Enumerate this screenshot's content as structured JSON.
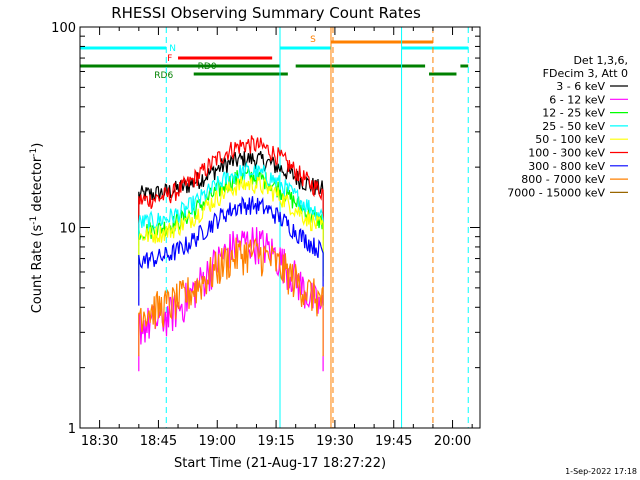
{
  "chart_data": {
    "type": "line",
    "title": "RHESSI Observing Summary Count Rates",
    "xlabel": "Start Time (21-Aug-17 18:27:22)",
    "ylabel": "Count Rate (s⁻¹ detector⁻¹)",
    "ylabel_main": "Count Rate (s",
    "ylabel_sup1": "-1",
    "ylabel_mid": " detector",
    "ylabel_sup2": "-1",
    "ylabel_end": ")",
    "y_scale": "log",
    "ylim": [
      1,
      100
    ],
    "xlim": [
      "18:25",
      "20:07"
    ],
    "x_ticks": [
      "18:30",
      "18:45",
      "19:00",
      "19:15",
      "19:30",
      "19:45",
      "20:00"
    ],
    "y_ticks": [
      "1",
      "10",
      "100"
    ],
    "legend": {
      "placement": "right",
      "header": [
        "Det 1,3,6,",
        "FDecim 3, Att 0"
      ],
      "entries": [
        {
          "label": "3 - 6 keV",
          "color": "#000000"
        },
        {
          "label": "6 - 12 keV",
          "color": "#ff00ff"
        },
        {
          "label": "12 - 25 keV",
          "color": "#00ff00"
        },
        {
          "label": "25 - 50 keV",
          "color": "#00ffff"
        },
        {
          "label": "50 - 100 keV",
          "color": "#ffff00"
        },
        {
          "label": "100 - 300 keV",
          "color": "#ff0000"
        },
        {
          "label": "300 - 800 keV",
          "color": "#0000ff"
        },
        {
          "label": "800 - 7000 keV",
          "color": "#ff8000"
        },
        {
          "label": "7000 - 15000 keV",
          "color": "#996600"
        }
      ]
    },
    "data_start": "18:40",
    "data_end": "19:27",
    "series": [
      {
        "name": "3 - 6 keV",
        "color": "#000000",
        "start": 14.5,
        "peak": 22.0
      },
      {
        "name": "100 - 300 keV",
        "color": "#ff0000",
        "start": 13.5,
        "peak": 26.0
      },
      {
        "name": "12 - 25 keV",
        "color": "#00ff00",
        "start": 9.5,
        "peak": 18.0
      },
      {
        "name": "25 - 50 keV",
        "color": "#00ffff",
        "start": 10.5,
        "peak": 19.0
      },
      {
        "name": "50 - 100 keV",
        "color": "#ffff00",
        "start": 9.0,
        "peak": 16.5
      },
      {
        "name": "6 - 12 keV",
        "color": "#ff00ff",
        "start": 3.2,
        "peak": 8.5
      },
      {
        "name": "300 - 800 keV",
        "color": "#0000ff",
        "start": 6.8,
        "peak": 13.0
      },
      {
        "name": "800 - 7000 keV",
        "color": "#ff8000",
        "start": 3.8,
        "peak": 7.5
      }
    ],
    "flag_bars": [
      {
        "label": "N",
        "color": "#00ffff",
        "label_at": "18:47",
        "segments": [
          [
            "18:25",
            "18:47"
          ],
          [
            "19:16",
            "19:29"
          ],
          [
            "19:47",
            "20:04"
          ]
        ]
      },
      {
        "label": "S",
        "color": "#ff8000",
        "label_at": "19:27",
        "segments": [
          [
            "19:29",
            "19:55"
          ]
        ]
      },
      {
        "label": "F",
        "color": "#ff0000",
        "label_at": "18:49",
        "segments": [
          [
            "18:50",
            "19:14"
          ]
        ]
      },
      {
        "label": "RD0",
        "color": "#008000",
        "label_at": "18:55",
        "segments": [
          [
            "18:25",
            "19:16"
          ],
          [
            "19:20",
            "19:53"
          ],
          [
            "20:02",
            "20:04"
          ]
        ]
      },
      {
        "label": "RD6",
        "color": "#008000",
        "label_at": "18:47",
        "segments": [
          [
            "18:54",
            "19:18"
          ],
          [
            "19:54",
            "20:01"
          ]
        ]
      }
    ],
    "vlines": [
      {
        "time": "18:25",
        "color": "#00ffff",
        "style": "solid"
      },
      {
        "time": "18:47",
        "color": "#00ffff",
        "style": "dashed"
      },
      {
        "time": "19:16",
        "color": "#00ffff",
        "style": "solid"
      },
      {
        "time": "19:29",
        "color": "#ff8000",
        "style": "solid"
      },
      {
        "time": "19:29",
        "color": "#ff8000",
        "style": "dashed"
      },
      {
        "time": "19:47",
        "color": "#00ffff",
        "style": "solid"
      },
      {
        "time": "19:55",
        "color": "#ff8000",
        "style": "dashed"
      },
      {
        "time": "20:04",
        "color": "#00ffff",
        "style": "dashed"
      }
    ]
  },
  "footer": {
    "timestamp": "1-Sep-2022 17:18"
  }
}
